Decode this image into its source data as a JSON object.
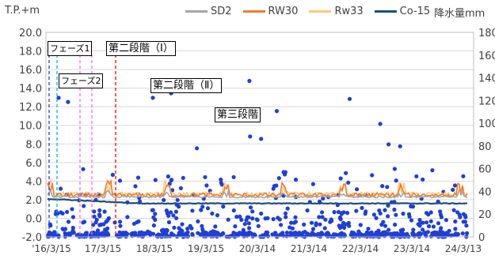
{
  "chart_data": {
    "type": "line",
    "left_axis_label": "T.P.+m",
    "right_axis_label": "降水量mm",
    "left_ylim": [
      -2,
      20
    ],
    "left_ticks": [
      "20.0",
      "18.0",
      "16.0",
      "14.0",
      "12.0",
      "10.0",
      "8.0",
      "6.0",
      "4.0",
      "2.0",
      "0.0",
      "-2.0"
    ],
    "right_ylim": [
      0,
      180
    ],
    "right_ticks": [
      "180",
      "160",
      "140",
      "120",
      "100",
      "80",
      "60",
      "40",
      "20",
      "0"
    ],
    "x_ticks": [
      "'16/3/15",
      "17/3/15",
      "18/3/15",
      "19/3/15",
      "20/3/14",
      "21/3/14",
      "22/3/14",
      "23/3/14",
      "24/3/13"
    ],
    "series": [
      {
        "name": "SD2",
        "color": "#a6a6a6",
        "approx_level": 2.3
      },
      {
        "name": "RW30",
        "color": "#ed7d31",
        "approx_level": 2.5
      },
      {
        "name": "Rw33",
        "color": "#ffc878",
        "approx_level": 2.6
      },
      {
        "name": "Co-15",
        "color": "#1f4e79",
        "approx_level": 1.6
      }
    ],
    "precipitation": {
      "color": "#1f3fd6",
      "axis": "right"
    },
    "phases": [
      {
        "label": "フェーズ1",
        "color": "#00b0f0",
        "x": 0.3
      },
      {
        "label": "フェーズ2",
        "color": "#ff66ff",
        "x": 1.5
      },
      {
        "label": "第二段階（Ⅰ）",
        "color": "#ff0000",
        "x": 2.0
      },
      {
        "label": "第二段階（Ⅱ）",
        "x": 3.5
      },
      {
        "label": "第三段階",
        "x": 5.0
      }
    ]
  }
}
